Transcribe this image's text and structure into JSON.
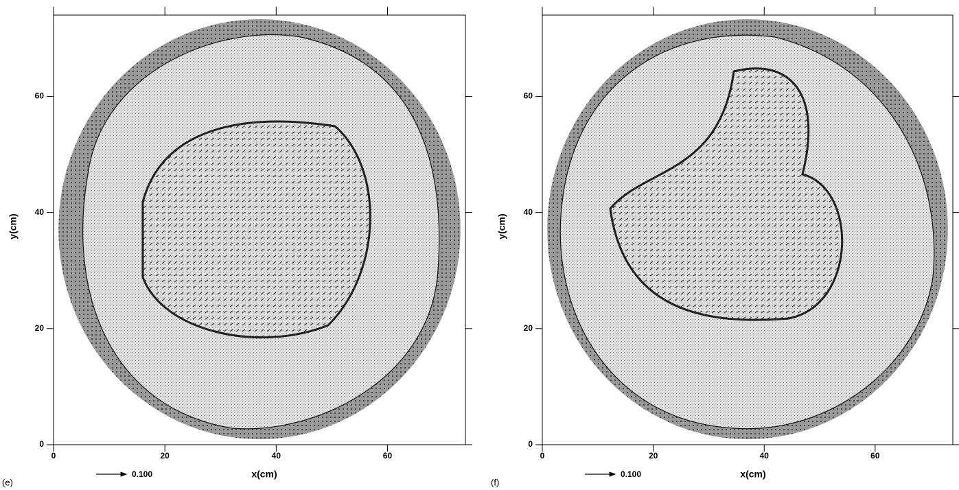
{
  "chart_data": [
    {
      "type": "vector-field",
      "panel_label": "(e)",
      "xlabel": "x(cm)",
      "ylabel": "y(cm)",
      "xlim": [
        0,
        74
      ],
      "ylim": [
        0,
        74
      ],
      "xticks": [
        0,
        20,
        40,
        60
      ],
      "yticks": [
        0,
        20,
        40,
        60
      ],
      "reference_label": "0.100"
    },
    {
      "type": "vector-field",
      "panel_label": "(f)",
      "xlabel": "x(cm)",
      "ylabel": "y(cm)",
      "xlim": [
        0,
        74
      ],
      "ylim": [
        0,
        74
      ],
      "xticks": [
        0,
        20,
        40,
        60
      ],
      "yticks": [
        0,
        20,
        40,
        60
      ],
      "reference_label": "0.100"
    }
  ]
}
